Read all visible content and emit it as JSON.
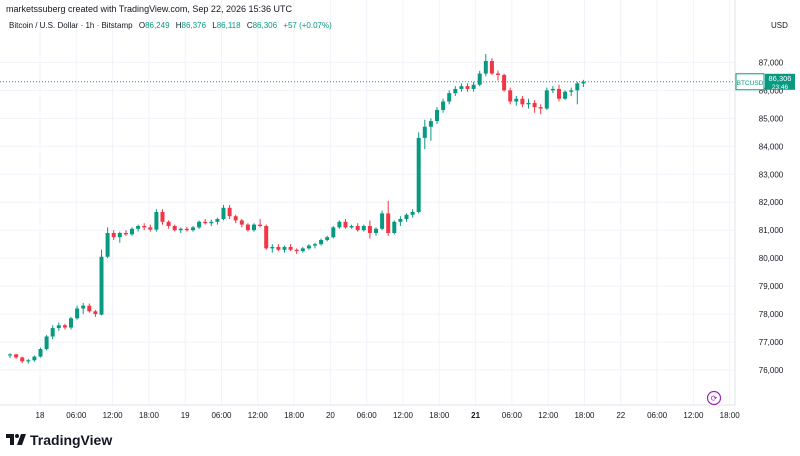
{
  "header": {
    "creator": "marketssuberg created with TradingView.com, Sep 22, 2026 15:36 UTC",
    "legend_title": "Bitcoin / U.S. Dollar · 1h · Bitstamp",
    "open_label": "O",
    "open": "86,249",
    "high_label": "H",
    "high": "86,376",
    "low_label": "L",
    "low": "86,118",
    "close_label": "C",
    "close": "86,306",
    "change": "+57 (+0.07%)"
  },
  "currency": "USD",
  "price_tag": {
    "symbol": "BTCUSD",
    "price": "86,306",
    "countdown": "23:46",
    "color": "#089981"
  },
  "branding": {
    "name": "TradingView"
  },
  "colors": {
    "up": "#089981",
    "down": "#f23645",
    "grid": "#f0f3fa",
    "text": "#131722"
  },
  "chart_data": {
    "type": "candlestick",
    "series_name": "BTCUSD",
    "interval": "1h",
    "ylim": [
      75000,
      87800
    ],
    "yticks": [
      76000,
      77000,
      78000,
      79000,
      80000,
      81000,
      82000,
      83000,
      84000,
      85000,
      86000,
      87000
    ],
    "ytick_labels": [
      "76,000",
      "77,000",
      "78,000",
      "79,000",
      "80,000",
      "81,000",
      "82,000",
      "83,000",
      "84,000",
      "85,000",
      "86,000",
      "87,000"
    ],
    "xticks": [
      {
        "label": "18",
        "bold": false
      },
      {
        "label": "06:00",
        "bold": false
      },
      {
        "label": "12:00",
        "bold": false
      },
      {
        "label": "18:00",
        "bold": false
      },
      {
        "label": "19",
        "bold": false
      },
      {
        "label": "06:00",
        "bold": false
      },
      {
        "label": "12:00",
        "bold": false
      },
      {
        "label": "18:00",
        "bold": false
      },
      {
        "label": "20",
        "bold": false
      },
      {
        "label": "06:00",
        "bold": false
      },
      {
        "label": "12:00",
        "bold": false
      },
      {
        "label": "18:00",
        "bold": false
      },
      {
        "label": "21",
        "bold": true
      },
      {
        "label": "06:00",
        "bold": false
      },
      {
        "label": "12:00",
        "bold": false
      },
      {
        "label": "18:00",
        "bold": false
      },
      {
        "label": "22",
        "bold": false
      },
      {
        "label": "06:00",
        "bold": false
      },
      {
        "label": "12:00",
        "bold": false
      },
      {
        "label": "18:00",
        "bold": false
      }
    ],
    "candles": [
      {
        "o": 76520,
        "h": 76600,
        "l": 76430,
        "c": 76560
      },
      {
        "o": 76560,
        "h": 76580,
        "l": 76400,
        "c": 76450
      },
      {
        "o": 76450,
        "h": 76480,
        "l": 76250,
        "c": 76310
      },
      {
        "o": 76310,
        "h": 76400,
        "l": 76230,
        "c": 76350
      },
      {
        "o": 76350,
        "h": 76520,
        "l": 76300,
        "c": 76480
      },
      {
        "o": 76480,
        "h": 76800,
        "l": 76450,
        "c": 76750
      },
      {
        "o": 76750,
        "h": 77250,
        "l": 76700,
        "c": 77200
      },
      {
        "o": 77200,
        "h": 77600,
        "l": 77100,
        "c": 77500
      },
      {
        "o": 77500,
        "h": 77700,
        "l": 77400,
        "c": 77600
      },
      {
        "o": 77600,
        "h": 77650,
        "l": 77450,
        "c": 77520
      },
      {
        "o": 77520,
        "h": 77900,
        "l": 77450,
        "c": 77850
      },
      {
        "o": 77850,
        "h": 78300,
        "l": 77800,
        "c": 78200
      },
      {
        "o": 78200,
        "h": 78400,
        "l": 78000,
        "c": 78300
      },
      {
        "o": 78300,
        "h": 78380,
        "l": 78050,
        "c": 78100
      },
      {
        "o": 78100,
        "h": 78150,
        "l": 77900,
        "c": 78000
      },
      {
        "o": 77980,
        "h": 80300,
        "l": 77950,
        "c": 80050
      },
      {
        "o": 80050,
        "h": 81100,
        "l": 80000,
        "c": 80900
      },
      {
        "o": 80900,
        "h": 81000,
        "l": 80650,
        "c": 80750
      },
      {
        "o": 80750,
        "h": 80950,
        "l": 80550,
        "c": 80900
      },
      {
        "o": 80900,
        "h": 81000,
        "l": 80800,
        "c": 80850
      },
      {
        "o": 80850,
        "h": 81100,
        "l": 80800,
        "c": 81050
      },
      {
        "o": 81050,
        "h": 81200,
        "l": 80950,
        "c": 81150
      },
      {
        "o": 81150,
        "h": 81250,
        "l": 81000,
        "c": 81100
      },
      {
        "o": 81100,
        "h": 81200,
        "l": 80950,
        "c": 81020
      },
      {
        "o": 81020,
        "h": 81750,
        "l": 80950,
        "c": 81650
      },
      {
        "o": 81650,
        "h": 81750,
        "l": 81200,
        "c": 81300
      },
      {
        "o": 81300,
        "h": 81350,
        "l": 81050,
        "c": 81150
      },
      {
        "o": 81150,
        "h": 81200,
        "l": 80950,
        "c": 81000
      },
      {
        "o": 81000,
        "h": 81100,
        "l": 80900,
        "c": 81050
      },
      {
        "o": 81050,
        "h": 81120,
        "l": 80950,
        "c": 81000
      },
      {
        "o": 81000,
        "h": 81150,
        "l": 80950,
        "c": 81100
      },
      {
        "o": 81100,
        "h": 81350,
        "l": 81050,
        "c": 81300
      },
      {
        "o": 81300,
        "h": 81400,
        "l": 81200,
        "c": 81250
      },
      {
        "o": 81250,
        "h": 81380,
        "l": 81150,
        "c": 81300
      },
      {
        "o": 81300,
        "h": 81450,
        "l": 81200,
        "c": 81400
      },
      {
        "o": 81400,
        "h": 81900,
        "l": 81350,
        "c": 81800
      },
      {
        "o": 81800,
        "h": 81900,
        "l": 81400,
        "c": 81500
      },
      {
        "o": 81500,
        "h": 81550,
        "l": 81250,
        "c": 81350
      },
      {
        "o": 81350,
        "h": 81400,
        "l": 81100,
        "c": 81200
      },
      {
        "o": 81200,
        "h": 81250,
        "l": 80950,
        "c": 81000
      },
      {
        "o": 81000,
        "h": 81250,
        "l": 80950,
        "c": 81200
      },
      {
        "o": 81200,
        "h": 81400,
        "l": 81100,
        "c": 81150
      },
      {
        "o": 81150,
        "h": 81200,
        "l": 80300,
        "c": 80350
      },
      {
        "o": 80350,
        "h": 80500,
        "l": 80200,
        "c": 80400
      },
      {
        "o": 80400,
        "h": 80500,
        "l": 80250,
        "c": 80300
      },
      {
        "o": 80300,
        "h": 80450,
        "l": 80200,
        "c": 80400
      },
      {
        "o": 80400,
        "h": 80500,
        "l": 80250,
        "c": 80300
      },
      {
        "o": 80300,
        "h": 80350,
        "l": 80150,
        "c": 80250
      },
      {
        "o": 80250,
        "h": 80400,
        "l": 80200,
        "c": 80350
      },
      {
        "o": 80350,
        "h": 80500,
        "l": 80300,
        "c": 80450
      },
      {
        "o": 80450,
        "h": 80550,
        "l": 80350,
        "c": 80500
      },
      {
        "o": 80500,
        "h": 80700,
        "l": 80450,
        "c": 80650
      },
      {
        "o": 80650,
        "h": 80800,
        "l": 80600,
        "c": 80750
      },
      {
        "o": 80750,
        "h": 81150,
        "l": 80700,
        "c": 81100
      },
      {
        "o": 81100,
        "h": 81350,
        "l": 81050,
        "c": 81300
      },
      {
        "o": 81300,
        "h": 81400,
        "l": 81050,
        "c": 81100
      },
      {
        "o": 81100,
        "h": 81200,
        "l": 81050,
        "c": 81150
      },
      {
        "o": 81150,
        "h": 81250,
        "l": 80950,
        "c": 81000
      },
      {
        "o": 81000,
        "h": 81200,
        "l": 80950,
        "c": 81150
      },
      {
        "o": 81150,
        "h": 81350,
        "l": 80700,
        "c": 80900
      },
      {
        "o": 80900,
        "h": 81100,
        "l": 80800,
        "c": 81050
      },
      {
        "o": 81050,
        "h": 81700,
        "l": 81000,
        "c": 81600
      },
      {
        "o": 81600,
        "h": 82050,
        "l": 80800,
        "c": 80900
      },
      {
        "o": 80900,
        "h": 81350,
        "l": 80850,
        "c": 81300
      },
      {
        "o": 81300,
        "h": 81500,
        "l": 81150,
        "c": 81400
      },
      {
        "o": 81400,
        "h": 81600,
        "l": 81300,
        "c": 81550
      },
      {
        "o": 81550,
        "h": 81750,
        "l": 81450,
        "c": 81650
      },
      {
        "o": 81650,
        "h": 84500,
        "l": 81600,
        "c": 84300
      },
      {
        "o": 84300,
        "h": 84950,
        "l": 83900,
        "c": 84700
      },
      {
        "o": 84700,
        "h": 85000,
        "l": 84200,
        "c": 84900
      },
      {
        "o": 84900,
        "h": 85400,
        "l": 84800,
        "c": 85300
      },
      {
        "o": 85300,
        "h": 85700,
        "l": 85200,
        "c": 85600
      },
      {
        "o": 85600,
        "h": 86000,
        "l": 85500,
        "c": 85900
      },
      {
        "o": 85900,
        "h": 86150,
        "l": 85800,
        "c": 86050
      },
      {
        "o": 86050,
        "h": 86250,
        "l": 85950,
        "c": 86150
      },
      {
        "o": 86150,
        "h": 86250,
        "l": 85950,
        "c": 86050
      },
      {
        "o": 86050,
        "h": 86300,
        "l": 85950,
        "c": 86200
      },
      {
        "o": 86200,
        "h": 86700,
        "l": 86150,
        "c": 86600
      },
      {
        "o": 86600,
        "h": 87300,
        "l": 86500,
        "c": 87050
      },
      {
        "o": 87050,
        "h": 87150,
        "l": 86550,
        "c": 86600
      },
      {
        "o": 86600,
        "h": 86700,
        "l": 86350,
        "c": 86550
      },
      {
        "o": 86550,
        "h": 86600,
        "l": 85950,
        "c": 86000
      },
      {
        "o": 86000,
        "h": 86100,
        "l": 85500,
        "c": 85600
      },
      {
        "o": 85600,
        "h": 85800,
        "l": 85450,
        "c": 85700
      },
      {
        "o": 85700,
        "h": 85800,
        "l": 85400,
        "c": 85500
      },
      {
        "o": 85500,
        "h": 85700,
        "l": 85350,
        "c": 85550
      },
      {
        "o": 85550,
        "h": 85650,
        "l": 85200,
        "c": 85400
      },
      {
        "o": 85400,
        "h": 85500,
        "l": 85150,
        "c": 85350
      },
      {
        "o": 85350,
        "h": 86100,
        "l": 85300,
        "c": 86000
      },
      {
        "o": 86000,
        "h": 86150,
        "l": 85900,
        "c": 86050
      },
      {
        "o": 86050,
        "h": 86200,
        "l": 85600,
        "c": 85700
      },
      {
        "o": 85700,
        "h": 86000,
        "l": 85650,
        "c": 85950
      },
      {
        "o": 85950,
        "h": 86100,
        "l": 85800,
        "c": 86000
      },
      {
        "o": 86000,
        "h": 86300,
        "l": 85500,
        "c": 86249
      },
      {
        "o": 86249,
        "h": 86376,
        "l": 86118,
        "c": 86306
      }
    ]
  }
}
